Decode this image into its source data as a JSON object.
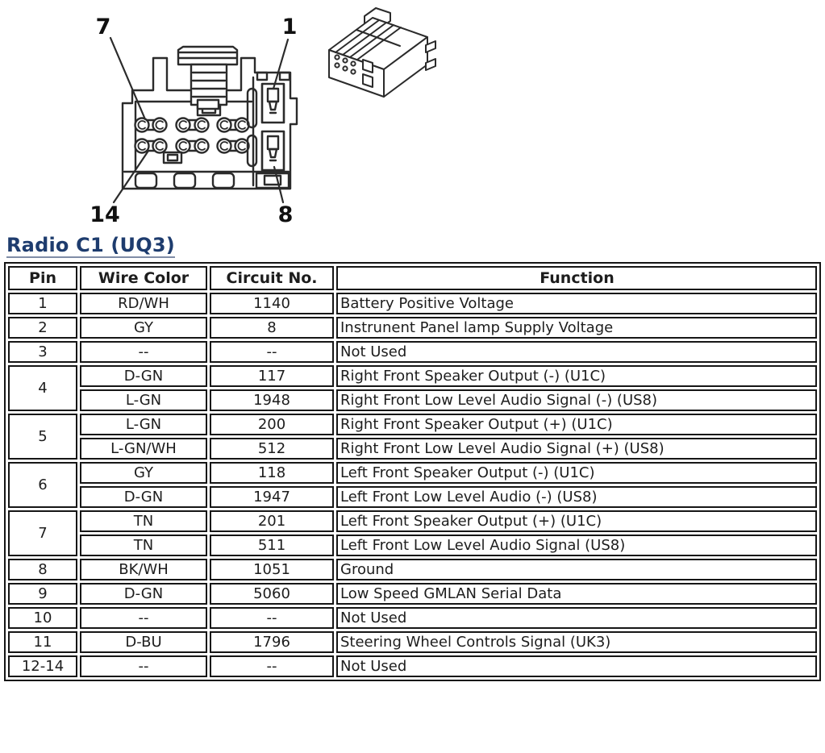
{
  "page": {
    "background": "#ffffff"
  },
  "connector_diagram": {
    "line_color": "#2b2b2b",
    "pin_labels": {
      "top_left": "7",
      "top_right": "1",
      "bottom_left": "14",
      "bottom_right": "8"
    }
  },
  "section": {
    "title": "Radio C1 (UQ3)",
    "title_color": "#1e3c6e"
  },
  "table": {
    "headers": [
      "Pin",
      "Wire Color",
      "Circuit No.",
      "Function"
    ],
    "rows": [
      {
        "pin": "1",
        "subrows": [
          {
            "wire": "RD/WH",
            "circuit": "1140",
            "function": "Battery Positive Voltage"
          }
        ]
      },
      {
        "pin": "2",
        "subrows": [
          {
            "wire": "GY",
            "circuit": "8",
            "function": "Instrunent Panel lamp Supply Voltage"
          }
        ]
      },
      {
        "pin": "3",
        "subrows": [
          {
            "wire": "--",
            "circuit": "--",
            "function": "Not Used"
          }
        ]
      },
      {
        "pin": "4",
        "subrows": [
          {
            "wire": "D-GN",
            "circuit": "117",
            "function": "Right Front Speaker Output (-) (U1C)"
          },
          {
            "wire": "L-GN",
            "circuit": "1948",
            "function": "Right Front Low Level Audio Signal (-) (US8)"
          }
        ]
      },
      {
        "pin": "5",
        "subrows": [
          {
            "wire": "L-GN",
            "circuit": "200",
            "function": "Right Front Speaker Output (+) (U1C)"
          },
          {
            "wire": "L-GN/WH",
            "circuit": "512",
            "function": "Right Front Low Level Audio Signal (+) (US8)"
          }
        ]
      },
      {
        "pin": "6",
        "subrows": [
          {
            "wire": "GY",
            "circuit": "118",
            "function": "Left Front Speaker Output (-) (U1C)"
          },
          {
            "wire": "D-GN",
            "circuit": "1947",
            "function": "Left Front Low Level Audio (-) (US8)"
          }
        ]
      },
      {
        "pin": "7",
        "subrows": [
          {
            "wire": "TN",
            "circuit": "201",
            "function": "Left Front Speaker Output (+) (U1C)"
          },
          {
            "wire": "TN",
            "circuit": "511",
            "function": "Left Front Low Level Audio Signal (US8)"
          }
        ]
      },
      {
        "pin": "8",
        "subrows": [
          {
            "wire": "BK/WH",
            "circuit": "1051",
            "function": "Ground"
          }
        ]
      },
      {
        "pin": "9",
        "subrows": [
          {
            "wire": "D-GN",
            "circuit": "5060",
            "function": "Low Speed GMLAN Serial Data"
          }
        ]
      },
      {
        "pin": "10",
        "subrows": [
          {
            "wire": "--",
            "circuit": "--",
            "function": "Not Used"
          }
        ]
      },
      {
        "pin": "11",
        "subrows": [
          {
            "wire": "D-BU",
            "circuit": "1796",
            "function": "Steering Wheel Controls Signal (UK3)"
          }
        ]
      },
      {
        "pin": "12-14",
        "subrows": [
          {
            "wire": "--",
            "circuit": "--",
            "function": "Not Used"
          }
        ]
      }
    ]
  }
}
